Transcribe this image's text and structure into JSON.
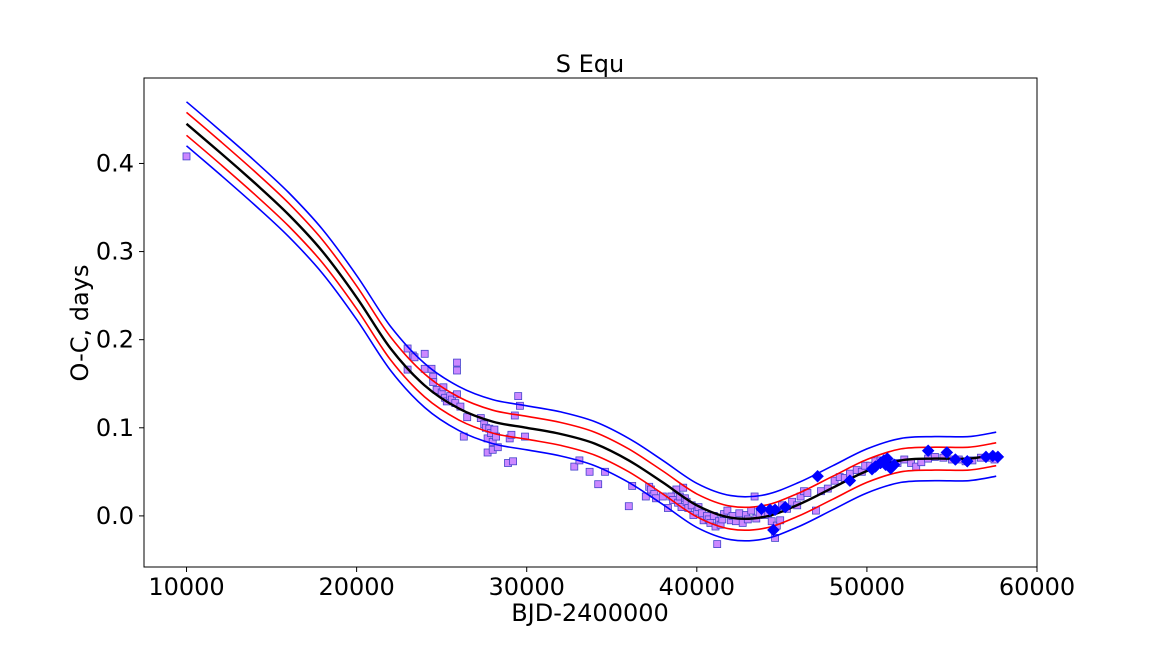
{
  "chart_data": {
    "type": "scatter",
    "title": "S Equ",
    "xlabel": "BJD-2400000",
    "ylabel": "O-C, days",
    "xlim": [
      7500,
      60000
    ],
    "ylim": [
      -0.058,
      0.497
    ],
    "xticks": [
      10000,
      20000,
      30000,
      40000,
      50000,
      60000
    ],
    "yticks": [
      0.0,
      0.1,
      0.2,
      0.3,
      0.4
    ],
    "xtick_labels": [
      "10000",
      "20000",
      "30000",
      "40000",
      "50000",
      "60000"
    ],
    "ytick_labels": [
      "0.0",
      "0.1",
      "0.2",
      "0.3",
      "0.4"
    ],
    "colors": {
      "fit": "#000000",
      "inner_band": "#ff0000",
      "outer_band": "#0000ff",
      "square_fill": "#cc88ff",
      "square_edge": "#4444cc",
      "diamond": "#0000ff"
    },
    "series": [
      {
        "name": "fit",
        "kind": "line",
        "x": [
          10000,
          12000,
          14000,
          16000,
          18000,
          20000,
          22000,
          24000,
          26000,
          28000,
          30000,
          32000,
          34000,
          36000,
          38000,
          40000,
          42000,
          44000,
          46000,
          48000,
          50000,
          52000,
          54000,
          56000,
          57600
        ],
        "y": [
          0.445,
          0.412,
          0.378,
          0.342,
          0.3,
          0.248,
          0.19,
          0.148,
          0.122,
          0.107,
          0.1,
          0.093,
          0.082,
          0.063,
          0.038,
          0.012,
          -0.002,
          -0.001,
          0.013,
          0.032,
          0.051,
          0.063,
          0.065,
          0.065,
          0.07
        ]
      },
      {
        "name": "inner_upper",
        "kind": "line",
        "x": [
          10000,
          12000,
          14000,
          16000,
          18000,
          20000,
          22000,
          24000,
          26000,
          28000,
          30000,
          32000,
          34000,
          36000,
          38000,
          40000,
          42000,
          44000,
          46000,
          48000,
          50000,
          52000,
          54000,
          56000,
          57600
        ],
        "y": [
          0.458,
          0.425,
          0.391,
          0.355,
          0.313,
          0.261,
          0.203,
          0.161,
          0.135,
          0.12,
          0.113,
          0.106,
          0.095,
          0.076,
          0.051,
          0.025,
          0.011,
          0.012,
          0.026,
          0.045,
          0.064,
          0.076,
          0.078,
          0.078,
          0.083
        ]
      },
      {
        "name": "inner_lower",
        "kind": "line",
        "x": [
          10000,
          12000,
          14000,
          16000,
          18000,
          20000,
          22000,
          24000,
          26000,
          28000,
          30000,
          32000,
          34000,
          36000,
          38000,
          40000,
          42000,
          44000,
          46000,
          48000,
          50000,
          52000,
          54000,
          56000,
          57600
        ],
        "y": [
          0.432,
          0.399,
          0.365,
          0.329,
          0.287,
          0.235,
          0.177,
          0.135,
          0.109,
          0.094,
          0.087,
          0.08,
          0.069,
          0.05,
          0.025,
          -0.001,
          -0.015,
          -0.014,
          0.0,
          0.019,
          0.038,
          0.05,
          0.052,
          0.052,
          0.057
        ]
      },
      {
        "name": "outer_upper",
        "kind": "line",
        "x": [
          10000,
          12000,
          14000,
          16000,
          18000,
          20000,
          22000,
          24000,
          26000,
          28000,
          30000,
          32000,
          34000,
          36000,
          38000,
          40000,
          42000,
          44000,
          46000,
          48000,
          50000,
          52000,
          54000,
          56000,
          57600
        ],
        "y": [
          0.47,
          0.437,
          0.403,
          0.367,
          0.325,
          0.273,
          0.215,
          0.173,
          0.147,
          0.132,
          0.125,
          0.118,
          0.107,
          0.088,
          0.063,
          0.037,
          0.023,
          0.024,
          0.038,
          0.057,
          0.076,
          0.088,
          0.09,
          0.09,
          0.095
        ]
      },
      {
        "name": "outer_lower",
        "kind": "line",
        "x": [
          10000,
          12000,
          14000,
          16000,
          18000,
          20000,
          22000,
          24000,
          26000,
          28000,
          30000,
          32000,
          34000,
          36000,
          38000,
          40000,
          42000,
          44000,
          46000,
          48000,
          50000,
          52000,
          54000,
          56000,
          57600
        ],
        "y": [
          0.42,
          0.387,
          0.353,
          0.317,
          0.275,
          0.223,
          0.165,
          0.123,
          0.097,
          0.082,
          0.075,
          0.068,
          0.057,
          0.038,
          0.013,
          -0.013,
          -0.027,
          -0.026,
          -0.012,
          0.007,
          0.026,
          0.038,
          0.04,
          0.04,
          0.045
        ]
      },
      {
        "name": "visual_times",
        "kind": "square",
        "points": [
          [
            10000,
            0.408
          ],
          [
            23000,
            0.19
          ],
          [
            23000,
            0.166
          ],
          [
            23300,
            0.182
          ],
          [
            23400,
            0.18
          ],
          [
            24000,
            0.184
          ],
          [
            24000,
            0.167
          ],
          [
            24400,
            0.167
          ],
          [
            24500,
            0.158
          ],
          [
            24500,
            0.152
          ],
          [
            24700,
            0.143
          ],
          [
            25000,
            0.14
          ],
          [
            25100,
            0.146
          ],
          [
            25200,
            0.134
          ],
          [
            25300,
            0.13
          ],
          [
            25500,
            0.136
          ],
          [
            25600,
            0.132
          ],
          [
            25800,
            0.128
          ],
          [
            25900,
            0.138
          ],
          [
            25900,
            0.174
          ],
          [
            25900,
            0.165
          ],
          [
            26100,
            0.124
          ],
          [
            26300,
            0.09
          ],
          [
            26500,
            0.112
          ],
          [
            27300,
            0.111
          ],
          [
            27500,
            0.104
          ],
          [
            27600,
            0.1
          ],
          [
            27700,
            0.072
          ],
          [
            27700,
            0.088
          ],
          [
            27800,
            0.099
          ],
          [
            27900,
            0.094
          ],
          [
            28000,
            0.084
          ],
          [
            28000,
            0.075
          ],
          [
            28100,
            0.098
          ],
          [
            28200,
            0.09
          ],
          [
            28300,
            0.078
          ],
          [
            28900,
            0.06
          ],
          [
            29000,
            0.088
          ],
          [
            29100,
            0.092
          ],
          [
            29200,
            0.062
          ],
          [
            29300,
            0.114
          ],
          [
            29500,
            0.136
          ],
          [
            29600,
            0.125
          ],
          [
            29900,
            0.09
          ],
          [
            32800,
            0.056
          ],
          [
            33100,
            0.063
          ],
          [
            33700,
            0.05
          ],
          [
            34200,
            0.036
          ],
          [
            34600,
            0.05
          ],
          [
            36000,
            0.011
          ],
          [
            36200,
            0.034
          ],
          [
            37000,
            0.022
          ],
          [
            37200,
            0.033
          ],
          [
            37300,
            0.03
          ],
          [
            37500,
            0.025
          ],
          [
            37600,
            0.02
          ],
          [
            38000,
            0.022
          ],
          [
            38300,
            0.009
          ],
          [
            38500,
            0.022
          ],
          [
            38600,
            0.018
          ],
          [
            38800,
            0.03
          ],
          [
            38900,
            0.015
          ],
          [
            39000,
            0.022
          ],
          [
            39100,
            0.01
          ],
          [
            39200,
            0.032
          ],
          [
            39300,
            0.02
          ],
          [
            39400,
            0.016
          ],
          [
            39500,
            0.009
          ],
          [
            39700,
            0.012
          ],
          [
            39800,
            0.001
          ],
          [
            40000,
            0.005
          ],
          [
            40100,
            0.01
          ],
          [
            40300,
            0.003
          ],
          [
            40400,
            -0.005
          ],
          [
            40600,
            0.0
          ],
          [
            40700,
            -0.004
          ],
          [
            40800,
            -0.008
          ],
          [
            41000,
            0.0
          ],
          [
            41100,
            -0.012
          ],
          [
            41200,
            -0.032
          ],
          [
            41300,
            -0.006
          ],
          [
            41400,
            -0.01
          ],
          [
            41500,
            -0.004
          ],
          [
            41600,
            0.002
          ],
          [
            41800,
            0.006
          ],
          [
            42000,
            -0.005
          ],
          [
            42100,
            0.0
          ],
          [
            42300,
            -0.006
          ],
          [
            42500,
            0.003
          ],
          [
            42700,
            -0.008
          ],
          [
            42900,
            0.001
          ],
          [
            43000,
            -0.004
          ],
          [
            43200,
            0.006
          ],
          [
            43400,
            0.022
          ],
          [
            43500,
            -0.003
          ],
          [
            43700,
            0.002
          ],
          [
            44000,
            0.001
          ],
          [
            44200,
            0.003
          ],
          [
            44400,
            -0.006
          ],
          [
            44600,
            -0.025
          ],
          [
            44700,
            -0.011
          ],
          [
            44900,
            -0.005
          ],
          [
            45000,
            0.012
          ],
          [
            45300,
            0.008
          ],
          [
            45600,
            0.016
          ],
          [
            45900,
            0.012
          ],
          [
            46100,
            0.022
          ],
          [
            46300,
            0.028
          ],
          [
            46500,
            0.026
          ],
          [
            47000,
            0.006
          ],
          [
            47300,
            0.028
          ],
          [
            47700,
            0.031
          ],
          [
            48100,
            0.04
          ],
          [
            48400,
            0.044
          ],
          [
            48700,
            0.043
          ],
          [
            49000,
            0.048
          ],
          [
            49400,
            0.052
          ],
          [
            49700,
            0.05
          ],
          [
            49900,
            0.057
          ],
          [
            50200,
            0.057
          ],
          [
            50500,
            0.062
          ],
          [
            50800,
            0.063
          ],
          [
            51100,
            0.06
          ],
          [
            51500,
            0.058
          ],
          [
            51800,
            0.06
          ],
          [
            52200,
            0.064
          ],
          [
            52600,
            0.06
          ],
          [
            52900,
            0.056
          ],
          [
            53200,
            0.061
          ],
          [
            53600,
            0.065
          ],
          [
            54000,
            0.067
          ],
          [
            54500,
            0.066
          ],
          [
            55000,
            0.064
          ],
          [
            55400,
            0.064
          ],
          [
            55800,
            0.062
          ],
          [
            56200,
            0.063
          ],
          [
            56700,
            0.066
          ],
          [
            57100,
            0.066
          ],
          [
            57500,
            0.064
          ]
        ]
      },
      {
        "name": "ccd_times",
        "kind": "diamond",
        "points": [
          [
            43800,
            0.008
          ],
          [
            44300,
            0.007
          ],
          [
            44500,
            -0.016
          ],
          [
            44600,
            0.007
          ],
          [
            45200,
            0.01
          ],
          [
            47100,
            0.045
          ],
          [
            49000,
            0.04
          ],
          [
            50300,
            0.053
          ],
          [
            50500,
            0.056
          ],
          [
            50800,
            0.06
          ],
          [
            51000,
            0.063
          ],
          [
            51100,
            0.058
          ],
          [
            51200,
            0.065
          ],
          [
            51400,
            0.054
          ],
          [
            51600,
            0.058
          ],
          [
            53600,
            0.074
          ],
          [
            54700,
            0.072
          ],
          [
            55200,
            0.064
          ],
          [
            55900,
            0.062
          ],
          [
            57000,
            0.067
          ],
          [
            57400,
            0.068
          ],
          [
            57700,
            0.067
          ]
        ]
      }
    ]
  }
}
